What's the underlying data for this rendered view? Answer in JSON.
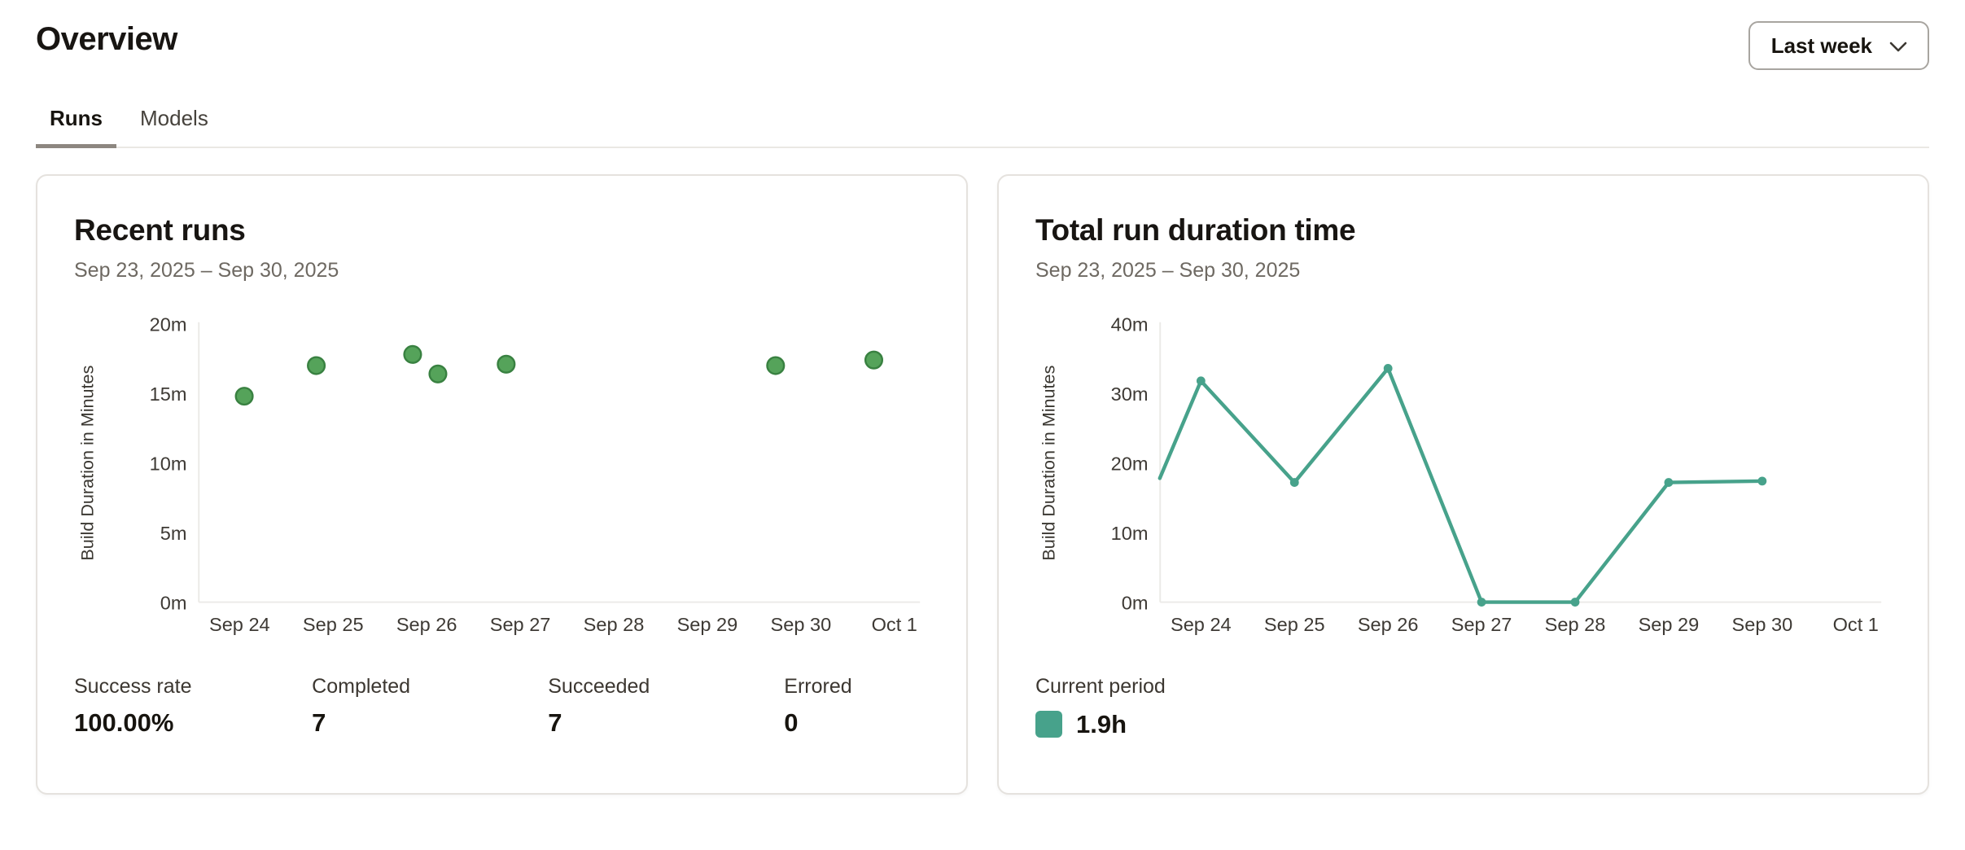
{
  "page": {
    "title": "Overview",
    "period_selector": {
      "label": "Last week"
    },
    "tabs": [
      {
        "label": "Runs",
        "active": true
      },
      {
        "label": "Models",
        "active": false
      }
    ]
  },
  "cards": {
    "recent_runs": {
      "title": "Recent runs",
      "date_range": "Sep 23, 2025 – Sep 30, 2025",
      "stats": [
        {
          "label": "Success rate",
          "value": "100.00%"
        },
        {
          "label": "Completed",
          "value": "7"
        },
        {
          "label": "Succeeded",
          "value": "7"
        },
        {
          "label": "Errored",
          "value": "0"
        }
      ]
    },
    "total_run_duration": {
      "title": "Total run duration time",
      "date_range": "Sep 23, 2025 – Sep 30, 2025",
      "legend": {
        "label": "Current period",
        "value": "1.9h",
        "color": "#47a28b"
      }
    }
  },
  "chart_data": [
    {
      "type": "scatter",
      "title": "Recent runs",
      "xlabel": "",
      "ylabel": "Build Duration in Minutes",
      "x_ticks": [
        "Sep 24",
        "Sep 25",
        "Sep 26",
        "Sep 27",
        "Sep 28",
        "Sep 29",
        "Sep 30",
        "Oct 1"
      ],
      "y_tick_labels": [
        "0m",
        "5m",
        "10m",
        "15m",
        "20m"
      ],
      "y_tick_values": [
        0,
        5,
        10,
        15,
        20
      ],
      "ylim": [
        0,
        20
      ],
      "grid": false,
      "legend_position": "none",
      "point_fill": "#55a35a",
      "point_stroke": "#398141",
      "points": [
        {
          "x": 0.05,
          "y": 14.8
        },
        {
          "x": 0.82,
          "y": 17.0
        },
        {
          "x": 1.85,
          "y": 17.8
        },
        {
          "x": 2.12,
          "y": 16.4
        },
        {
          "x": 2.85,
          "y": 17.1
        },
        {
          "x": 5.73,
          "y": 17.0
        },
        {
          "x": 6.78,
          "y": 17.4
        }
      ]
    },
    {
      "type": "line",
      "title": "Total run duration time",
      "xlabel": "",
      "ylabel": "Build Duration in Minutes",
      "x_ticks": [
        "Sep 24",
        "Sep 25",
        "Sep 26",
        "Sep 27",
        "Sep 28",
        "Sep 29",
        "Sep 30",
        "Oct 1"
      ],
      "y_tick_labels": [
        "0m",
        "10m",
        "20m",
        "30m",
        "40m"
      ],
      "y_tick_values": [
        0,
        10,
        20,
        30,
        40
      ],
      "ylim": [
        0,
        40
      ],
      "grid": false,
      "legend_position": "below",
      "line_color": "#47a28b",
      "points": [
        {
          "x": -0.44,
          "y": 17.8,
          "marker": false
        },
        {
          "x": 0,
          "y": 31.8
        },
        {
          "x": 1,
          "y": 17.2
        },
        {
          "x": 2,
          "y": 33.6
        },
        {
          "x": 3,
          "y": 0
        },
        {
          "x": 4,
          "y": 0
        },
        {
          "x": 5,
          "y": 17.2
        },
        {
          "x": 6,
          "y": 17.4
        }
      ]
    }
  ]
}
